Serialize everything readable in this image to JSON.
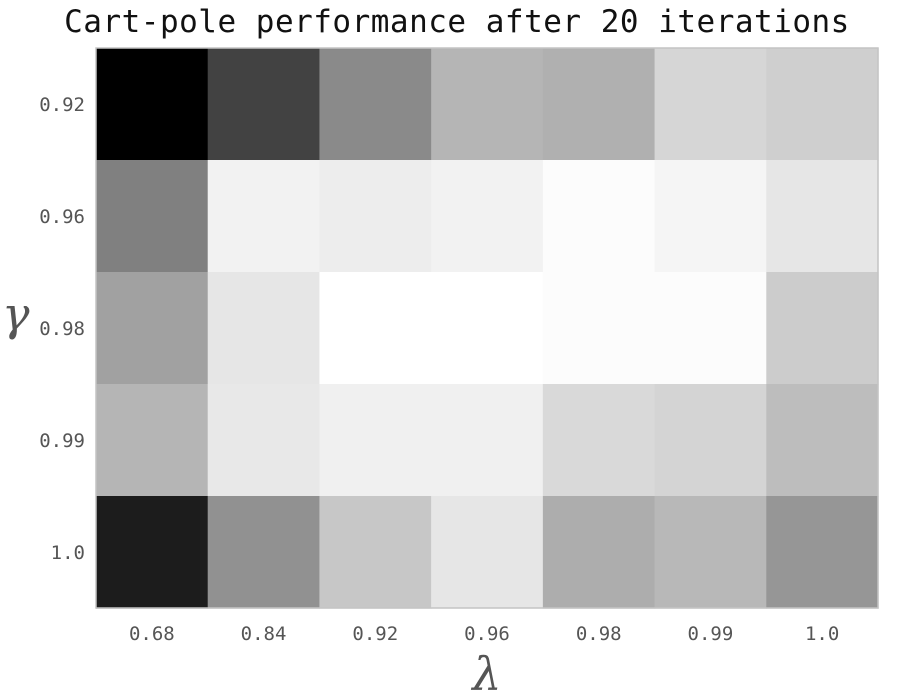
{
  "chart_data": {
    "type": "heatmap",
    "title": "Cart-pole performance after 20 iterations",
    "xlabel": "λ",
    "ylabel": "γ",
    "x_categories": [
      "0.68",
      "0.84",
      "0.92",
      "0.96",
      "0.98",
      "0.99",
      "1.0"
    ],
    "y_categories": [
      "0.92",
      "0.96",
      "0.98",
      "0.99",
      "1.0"
    ],
    "colormap": "grayscale (dark = low, light = high)",
    "value_range": [
      0,
      1
    ],
    "grid": false,
    "legend": "none",
    "values": [
      [
        0.0,
        0.26,
        0.54,
        0.71,
        0.69,
        0.84,
        0.81
      ],
      [
        0.5,
        0.95,
        0.93,
        0.95,
        0.99,
        0.96,
        0.9
      ],
      [
        0.63,
        0.9,
        1.0,
        1.0,
        0.99,
        0.99,
        0.8
      ],
      [
        0.71,
        0.91,
        0.94,
        0.94,
        0.85,
        0.83,
        0.74
      ],
      [
        0.11,
        0.57,
        0.78,
        0.9,
        0.68,
        0.72,
        0.59
      ]
    ]
  }
}
